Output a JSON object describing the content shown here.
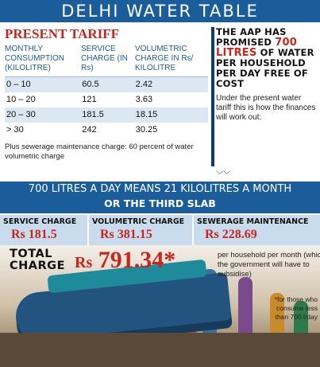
{
  "banner": {
    "title": "DELHI WATER TABLE"
  },
  "tariff": {
    "title": "PRESENT TARIFF",
    "headers": [
      "MONTHLY CONSUMPTION (KILOLITRE)",
      "SERVICE CHARGE (IN Rs)",
      "VOLUMETRIC CHARGE IN Rs/ KILOLITRE"
    ],
    "rows": [
      [
        "0 – 10",
        "60.5",
        "2.42"
      ],
      [
        "10 – 20",
        "121",
        "3.63"
      ],
      [
        "20 – 30",
        "181.5",
        "18.15"
      ],
      [
        "> 30",
        "242",
        "30.25"
      ]
    ],
    "note": "Plus sewerage maintenance charge: 60 percent of water volumetric charge"
  },
  "aap": {
    "head_pre": "THE AAP HAS PROMISED",
    "head_red": "700 LITRES",
    "head_post": "OF WATER PER HOUSEHOLD PER DAY FREE OF COST",
    "body": "Under the present water tariff this is how the finances will work out:"
  },
  "bar": {
    "line1": "700 LITRES A DAY MEANS 21 KILOLITRES A MONTH",
    "line2": "OR THE THIRD SLAB"
  },
  "charges": [
    {
      "label": "SERVICE CHARGE",
      "value": "Rs 181.5"
    },
    {
      "label": "VOLUMETRIC CHARGE",
      "value": "Rs 381.15"
    },
    {
      "label": "SEWERAGE MAINTENANCE",
      "value": "Rs 228.69"
    }
  ],
  "total": {
    "label_line1": "TOTAL",
    "label_line2": "CHARGE",
    "currency": "Rs",
    "value": "791.34*",
    "note": "per household per month (which the government will have to subsidise)"
  },
  "footnote": "*for those who consume less than 700 l/day",
  "colors": {
    "blue": "#1b5c9a",
    "red": "#c8261d",
    "row_tint": "#dbe7f2"
  }
}
